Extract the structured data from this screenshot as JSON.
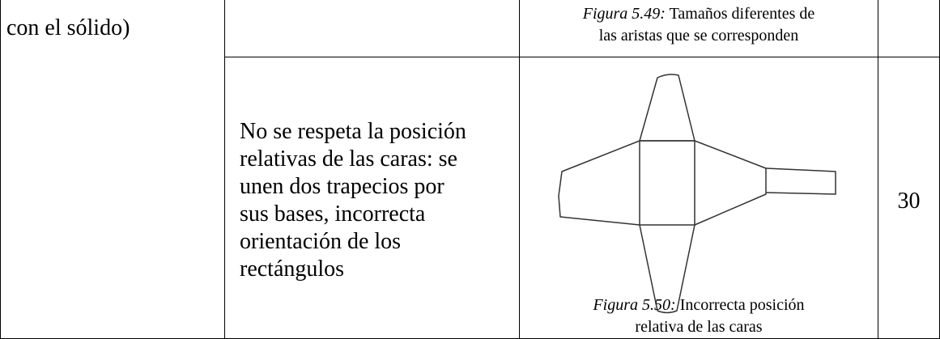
{
  "table": {
    "row_header": "con el sólido)",
    "rows": [
      {
        "figure_caption": {
          "label": "Figura 5.49:",
          "text_lines": [
            "Tamaños diferentes de",
            "las aristas que se corresponden"
          ]
        }
      },
      {
        "description_lines": [
          "No se respeta la posición",
          "relativas de las caras: se",
          "unen dos trapecios por",
          "sus bases, incorrecta",
          "orientación de los",
          "rectángulos"
        ],
        "figure_caption": {
          "label": "Figura 5.50:",
          "text_lines": [
            "Incorrecta posición",
            "relativa de las caras"
          ]
        },
        "value": 30
      }
    ]
  }
}
